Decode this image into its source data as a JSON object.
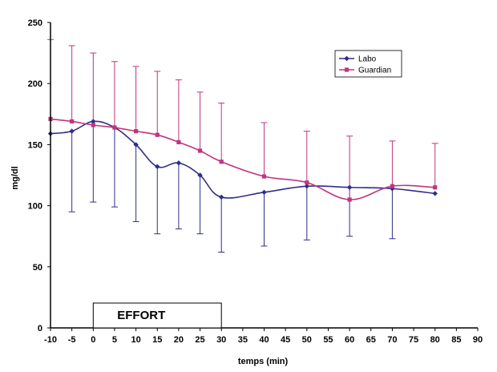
{
  "chart_data": {
    "type": "line",
    "xlabel": "temps (min)",
    "ylabel": "mg/dl",
    "xlim": [
      -10,
      90
    ],
    "ylim": [
      0,
      250
    ],
    "x_ticks": [
      -10,
      -5,
      0,
      5,
      10,
      15,
      20,
      25,
      30,
      35,
      40,
      45,
      50,
      55,
      60,
      65,
      70,
      75,
      80,
      85,
      90
    ],
    "y_ticks": [
      0,
      50,
      100,
      150,
      200,
      250
    ],
    "grid": false,
    "legend_position": "top-right",
    "annotation": {
      "text": "EFFORT",
      "x_start": 0,
      "x_end": 30
    },
    "series": [
      {
        "name": "Labo",
        "color": "#2e2e8a",
        "marker": "diamond",
        "x": [
          -10,
          -5,
          0,
          5,
          10,
          15,
          20,
          25,
          30,
          40,
          50,
          60,
          70,
          80
        ],
        "y": [
          159,
          161,
          169,
          164,
          150,
          132,
          135,
          125,
          107,
          111,
          116,
          115,
          114,
          110
        ],
        "error_low": [
          null,
          95,
          103,
          99,
          87,
          77,
          81,
          77,
          62,
          67,
          72,
          75,
          73,
          null
        ]
      },
      {
        "name": "Guardian",
        "color": "#c0357c",
        "marker": "square",
        "x": [
          -10,
          -5,
          0,
          5,
          10,
          15,
          20,
          25,
          30,
          40,
          50,
          60,
          70,
          80
        ],
        "y": [
          171,
          169,
          166,
          164,
          161,
          158,
          152,
          145,
          136,
          124,
          119,
          105,
          116,
          115
        ],
        "error_high": [
          236,
          231,
          225,
          218,
          214,
          210,
          203,
          193,
          184,
          168,
          161,
          157,
          153,
          151
        ]
      }
    ]
  }
}
